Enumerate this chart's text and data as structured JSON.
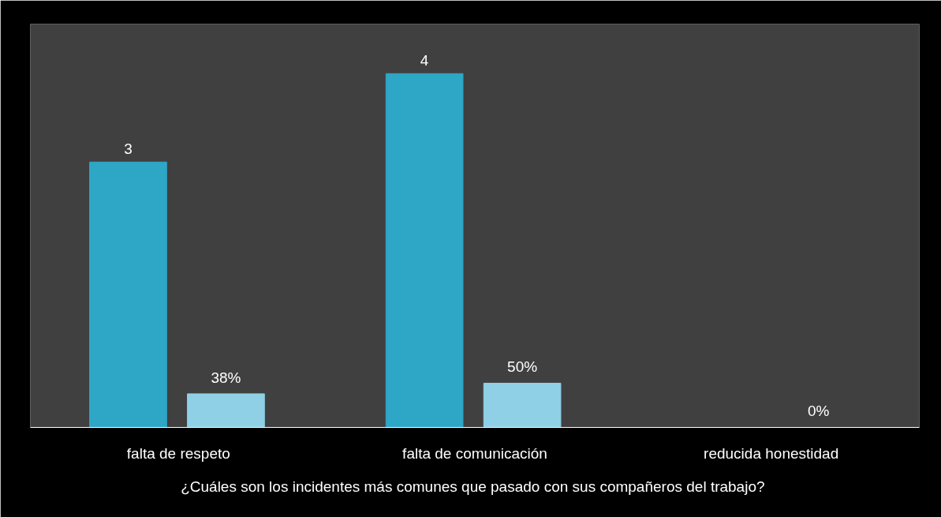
{
  "chart_data": {
    "type": "bar",
    "categories": [
      "falta de respeto",
      "falta de comunicación",
      "reducida honestidad"
    ],
    "xlabel": "¿Cuáles son los  incidentes más comunes que pasado con sus compañeros del trabajo?",
    "series": [
      {
        "color": "#2ea6c6",
        "values": [
          3,
          4,
          null
        ],
        "value_labels": [
          "3",
          "4",
          null
        ]
      },
      {
        "color": "#8fd0e6",
        "values": [
          0.38,
          0.5,
          0
        ],
        "value_labels": [
          "38%",
          "50%",
          "0%"
        ]
      }
    ],
    "grid": false
  }
}
